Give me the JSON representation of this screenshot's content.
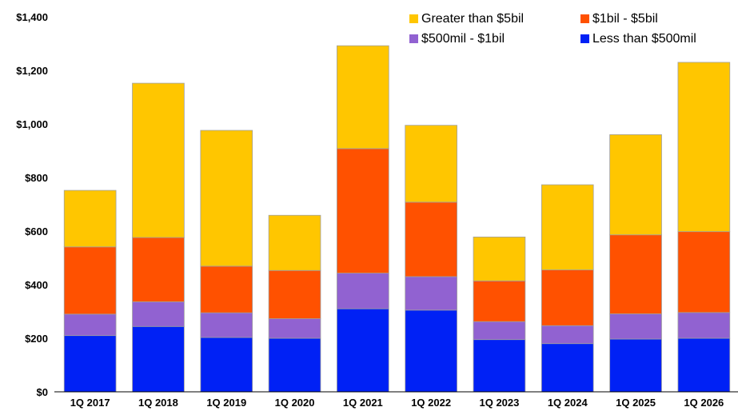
{
  "chart_data": {
    "type": "bar",
    "stacked": true,
    "categories": [
      "1Q 2017",
      "1Q 2018",
      "1Q 2019",
      "1Q 2020",
      "1Q 2021",
      "1Q 2022",
      "1Q 2023",
      "1Q 2024",
      "1Q 2025",
      "1Q 2026"
    ],
    "series": [
      {
        "name": "Less than $500mil",
        "color": "#0021F5",
        "values": [
          210,
          244,
          203,
          200,
          310,
          305,
          195,
          180,
          197,
          200
        ]
      },
      {
        "name": "$500mil - $1bil",
        "color": "#9162D1",
        "values": [
          80,
          92,
          92,
          73,
          133,
          125,
          67,
          67,
          94,
          96
        ]
      },
      {
        "name": "$1bil - $5bil",
        "color": "#FF5100",
        "values": [
          251,
          240,
          174,
          180,
          465,
          278,
          152,
          208,
          295,
          302
        ]
      },
      {
        "name": "Greater than $5bil",
        "color": "#FFC600",
        "values": [
          211,
          576,
          507,
          206,
          384,
          287,
          164,
          318,
          374,
          632
        ]
      }
    ],
    "yticks": [
      "$0",
      "$200",
      "$400",
      "$600",
      "$800",
      "$1,000",
      "$1,200",
      "$1,400"
    ],
    "ylim": [
      0,
      1400
    ],
    "title": "",
    "xlabel": "",
    "ylabel": "",
    "legend_position": "top-right",
    "legend_order": [
      "Greater than $5bil",
      "$1bil - $5bil",
      "$500mil - $1bil",
      "Less than $500mil"
    ],
    "grid": false
  }
}
